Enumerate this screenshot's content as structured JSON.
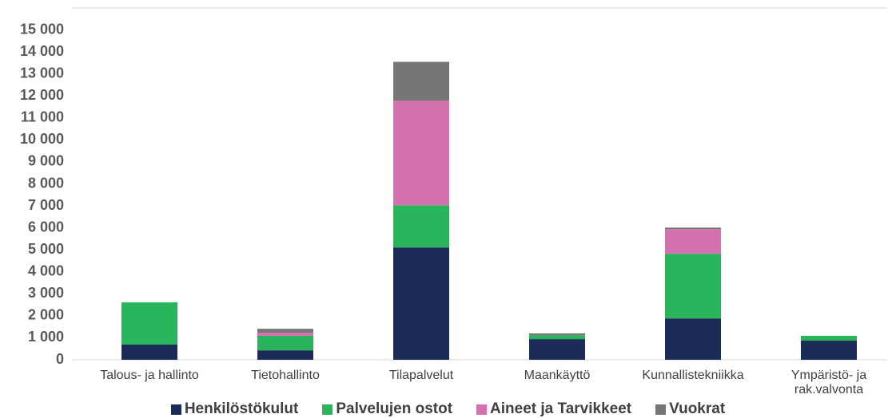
{
  "chart_data": {
    "type": "bar",
    "stacked": true,
    "categories": [
      "Talous- ja hallinto",
      "Tietohallinto",
      "Tilapalvelut",
      "Maankäyttö",
      "Kunnallistekniikka",
      "Ympäristö- ja rak.valvonta"
    ],
    "series": [
      {
        "name": "Henkilöstökulut",
        "color": "#1c2b57",
        "values": [
          690,
          430,
          5110,
          940,
          1880,
          870
        ]
      },
      {
        "name": "Palvelujen ostot",
        "color": "#2ab55c",
        "values": [
          1920,
          660,
          1920,
          180,
          2940,
          220
        ]
      },
      {
        "name": "Aineet ja Tarvikkeet",
        "color": "#d472b0",
        "values": [
          0,
          140,
          4750,
          0,
          1120,
          0
        ]
      },
      {
        "name": "Vuokrat",
        "color": "#767676",
        "values": [
          0,
          180,
          1770,
          80,
          70,
          0
        ]
      }
    ],
    "ylim": [
      0,
      16000
    ],
    "yticks": [
      0,
      {
        "value": 1000,
        "label": "1 000"
      },
      {
        "value": 2000,
        "label": "2 000"
      },
      {
        "value": 3000,
        "label": "3 000"
      },
      {
        "value": 4000,
        "label": "4 000"
      },
      {
        "value": 5000,
        "label": "5 000"
      },
      {
        "value": 6000,
        "label": "6 000"
      },
      {
        "value": 7000,
        "label": "7 000"
      },
      {
        "value": 8000,
        "label": "8 000"
      },
      {
        "value": 9000,
        "label": "9 000"
      },
      {
        "value": 10000,
        "label": "10 000"
      },
      {
        "value": 11000,
        "label": "11 000"
      },
      {
        "value": 12000,
        "label": "12 000"
      },
      {
        "value": 13000,
        "label": "13 000"
      },
      {
        "value": 14000,
        "label": "14 000"
      },
      {
        "value": 15000,
        "label": "15 000"
      }
    ],
    "grid": false,
    "legend": "bottom"
  }
}
